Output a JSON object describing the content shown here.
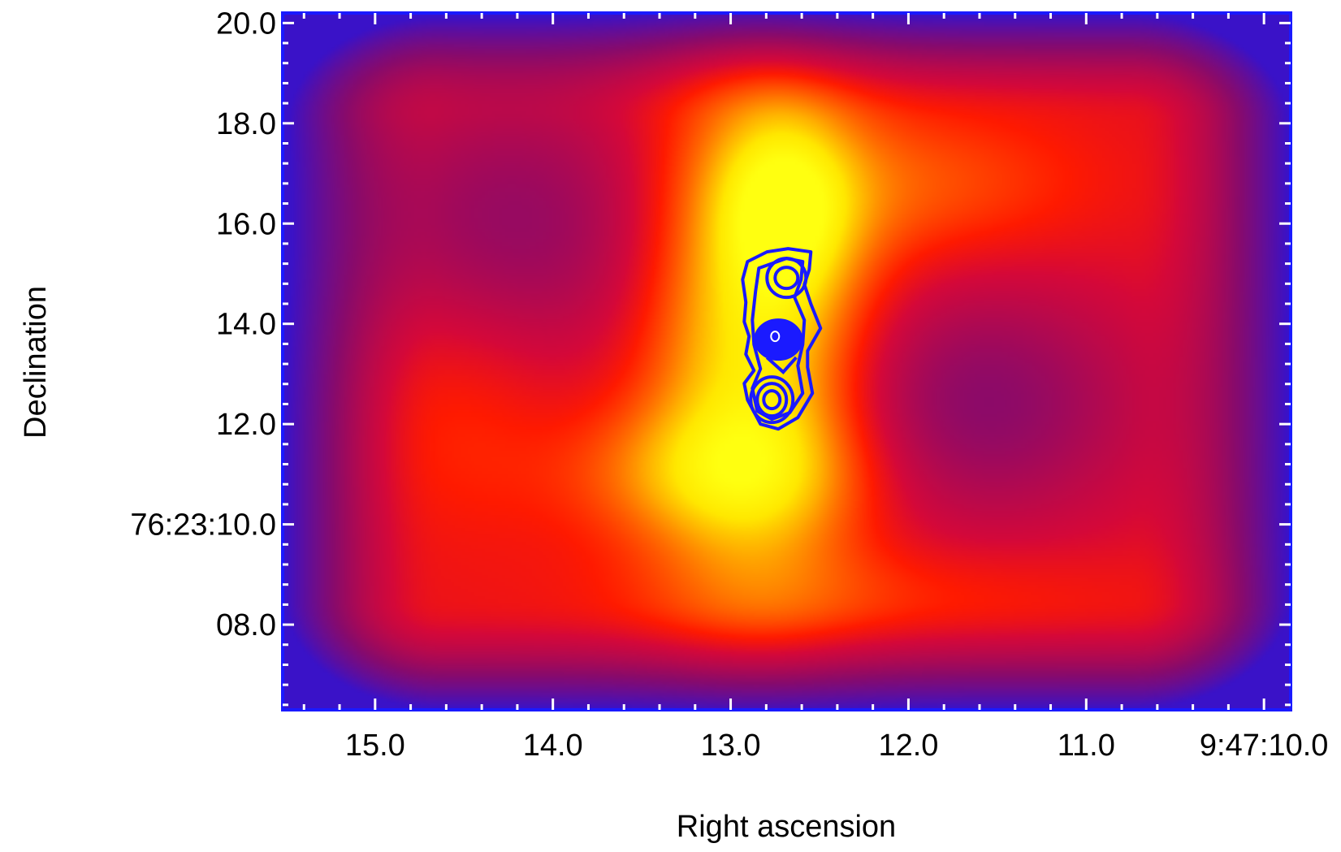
{
  "chart_data": {
    "type": "heatmap",
    "title": "",
    "xlabel": "Right ascension",
    "ylabel": "Declination",
    "x_axis": {
      "direction": "decreasing-to-right",
      "unit": "seconds of RA (9h47m)",
      "xlim": [
        15.52,
        9.85
      ],
      "ticks": [
        {
          "value": 15.0,
          "label": "15.0"
        },
        {
          "value": 14.0,
          "label": "14.0"
        },
        {
          "value": 13.0,
          "label": "13.0"
        },
        {
          "value": 12.0,
          "label": "12.0"
        },
        {
          "value": 11.0,
          "label": "11.0"
        },
        {
          "value": 10.0,
          "label": "9:47:10.0"
        }
      ],
      "minor_step": 0.2
    },
    "y_axis": {
      "unit": "arcseconds of Dec (+76d23m)",
      "ylim": [
        6.3,
        20.2
      ],
      "ticks": [
        {
          "value": 8.0,
          "label": "08.0"
        },
        {
          "value": 10.0,
          "label": "76:23:10.0"
        },
        {
          "value": 12.0,
          "label": "12.0"
        },
        {
          "value": 14.0,
          "label": "14.0"
        },
        {
          "value": 16.0,
          "label": "16.0"
        },
        {
          "value": 18.0,
          "label": "18.0"
        },
        {
          "value": 20.0,
          "label": "20.0"
        }
      ],
      "minor_step": 0.4
    },
    "colormap": {
      "name": "blue-red-yellow",
      "stops": [
        "#3a12c8",
        "#8a0a6a",
        "#d4083a",
        "#ff1a00",
        "#ff6a00",
        "#ffb000",
        "#ffe800",
        "#ffff10"
      ]
    },
    "overlay": {
      "type": "contour",
      "color": "#1a1aff",
      "center": {
        "ra": 12.75,
        "dec": 13.75
      }
    },
    "frame_color": "#1a1aff",
    "grid": false,
    "legend": "none"
  }
}
